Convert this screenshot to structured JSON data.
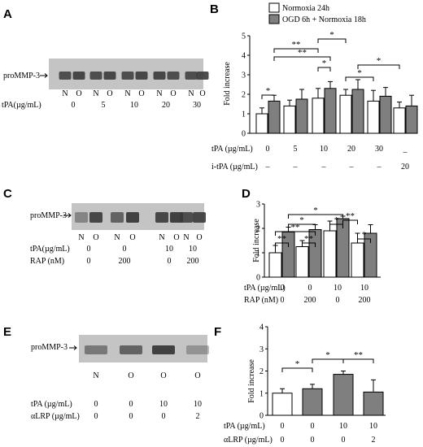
{
  "colors": {
    "normoxia": "#ffffff",
    "ogd": "#7f7f7f",
    "blot_bg": "#c4c4c4",
    "band": "#3a3a3a"
  },
  "legend": {
    "normoxia": "Normoxia 24h",
    "ogd": "OGD 6h + Normoxia 18h"
  },
  "panelA": {
    "letter": "A",
    "protein_label": "proMMP-3",
    "lane_labels": [
      "N",
      "O",
      "N",
      "O",
      "N",
      "O",
      "N",
      "O",
      "N",
      "O"
    ],
    "tpa_label": "tPA(µg/mL)",
    "tpa_values": [
      "0",
      "5",
      "10",
      "20",
      "30"
    ]
  },
  "panelB": {
    "letter": "B",
    "ylabel": "Fold increase",
    "yticks": [
      "0",
      "1",
      "2",
      "3",
      "4",
      "5"
    ],
    "tpa_label": "tPA (µg/mL)",
    "tpa_values": [
      "0",
      "5",
      "10",
      "20",
      "30",
      "_"
    ],
    "itpa_label": "i-tPA (µg/mL)",
    "itpa_values": [
      "–",
      "–",
      "–",
      "–",
      "–",
      "20"
    ],
    "sig": [
      "*",
      "**",
      "**",
      "*",
      "*",
      "*",
      "*"
    ]
  },
  "panelC": {
    "letter": "C",
    "protein_label": "proMMP-3",
    "lane_labels": [
      "N",
      "O",
      "N",
      "O",
      "N",
      "O",
      "N",
      "O"
    ],
    "tpa_label": "tPA(µg/mL)",
    "tpa_values": [
      "0",
      "0",
      "10",
      "10"
    ],
    "rap_label": "RAP (nM)",
    "rap_values": [
      "0",
      "200",
      "0",
      "200"
    ]
  },
  "panelD": {
    "letter": "D",
    "ylabel": "Fold increase",
    "yticks": [
      "0",
      "1",
      "2",
      "3"
    ],
    "tpa_label": "tPA (µg/mL)",
    "tpa_values": [
      "0",
      "0",
      "10",
      "10"
    ],
    "rap_label": "RAP (nM)",
    "rap_values": [
      "0",
      "200",
      "0",
      "200"
    ],
    "sig": [
      "**",
      "*",
      "**",
      "**",
      "*",
      "*",
      "**",
      "*"
    ]
  },
  "panelE": {
    "letter": "E",
    "protein_label": "proMMP-3",
    "lane_labels": [
      "N",
      "O",
      "O",
      "O"
    ],
    "tpa_label": "tPA (µg/mL)",
    "tpa_values": [
      "0",
      "0",
      "10",
      "10"
    ],
    "lrp_label": "αLRP (µg/mL)",
    "lrp_values": [
      "0",
      "0",
      "0",
      "2"
    ]
  },
  "panelF": {
    "letter": "F",
    "ylabel": "Fold increase",
    "yticks": [
      "0",
      "1",
      "2",
      "3",
      "4"
    ],
    "tpa_label": "tPA (µg/mL)",
    "tpa_values": [
      "0",
      "0",
      "10",
      "10"
    ],
    "lrp_label": "αLRP (µg/mL)",
    "lrp_values": [
      "0",
      "0",
      "0",
      "2"
    ],
    "sig": [
      "*",
      "*",
      "**"
    ]
  },
  "chart_data": [
    {
      "type": "bar",
      "panel": "B",
      "ylabel": "Fold increase",
      "ylim": [
        0,
        5
      ],
      "categories": [
        "tPA 0",
        "tPA 5",
        "tPA 10",
        "tPA 20",
        "tPA 30",
        "i-tPA 20"
      ],
      "series": [
        {
          "name": "Normoxia 24h",
          "values": [
            1.0,
            1.4,
            1.8,
            1.95,
            1.65,
            1.3
          ],
          "errors": [
            0.3,
            0.3,
            0.5,
            0.3,
            0.55,
            0.3
          ]
        },
        {
          "name": "OGD 6h + Normoxia 18h",
          "values": [
            1.65,
            1.75,
            2.3,
            2.25,
            1.9,
            1.4
          ],
          "errors": [
            0.3,
            0.5,
            0.35,
            0.5,
            0.45,
            0.55
          ]
        }
      ]
    },
    {
      "type": "bar",
      "panel": "D",
      "ylabel": "Fold increase",
      "ylim": [
        0,
        3
      ],
      "categories": [
        "tPA 0 / RAP 0",
        "tPA 0 / RAP 200",
        "tPA 10 / RAP 0",
        "tPA 10 / RAP 200"
      ],
      "series": [
        {
          "name": "Normoxia 24h",
          "values": [
            1.0,
            1.25,
            1.9,
            1.4
          ],
          "errors": [
            0.3,
            0.25,
            0.4,
            0.4
          ]
        },
        {
          "name": "OGD 6h + Normoxia 18h",
          "values": [
            1.85,
            1.95,
            2.4,
            1.8
          ],
          "errors": [
            0.2,
            0.2,
            0.1,
            0.35
          ]
        }
      ]
    },
    {
      "type": "bar",
      "panel": "F",
      "ylabel": "Fold increase",
      "ylim": [
        0,
        4
      ],
      "categories": [
        "N, tPA 0",
        "O, tPA 0",
        "O, tPA 10",
        "O, tPA 10 + αLRP 2"
      ],
      "values": [
        1.0,
        1.2,
        1.85,
        1.05
      ],
      "errors": [
        0.2,
        0.2,
        0.15,
        0.55
      ],
      "fill": [
        "normoxia",
        "ogd",
        "ogd",
        "ogd"
      ]
    }
  ]
}
